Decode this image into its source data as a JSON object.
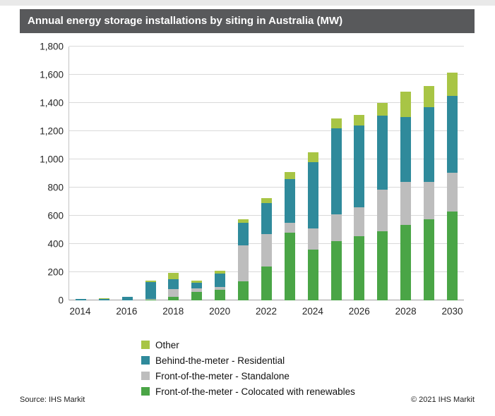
{
  "header": {
    "title": "Annual energy storage installations by siting in Australia (MW)"
  },
  "chart_data": {
    "type": "bar",
    "stacked": true,
    "title": "Annual energy storage installations by siting in Australia (MW)",
    "xlabel": "",
    "ylabel": "",
    "grid": true,
    "legend_position": "bottom",
    "ylim": [
      0,
      1800
    ],
    "ytick_step": 200,
    "ytick_labels": [
      "0",
      "200",
      "400",
      "600",
      "800",
      "1,000",
      "1,200",
      "1,400",
      "1,600",
      "1,800"
    ],
    "x": [
      2014,
      2015,
      2016,
      2017,
      2018,
      2019,
      2020,
      2021,
      2022,
      2023,
      2024,
      2025,
      2026,
      2027,
      2028,
      2029,
      2030
    ],
    "xtick_years": [
      2014,
      2016,
      2018,
      2020,
      2022,
      2024,
      2026,
      2028,
      2030
    ],
    "series": [
      {
        "name": "Front-of-the-meter - Colocated with renewables",
        "color": "#4aa546",
        "values": [
          0,
          0,
          0,
          5,
          25,
          60,
          75,
          135,
          240,
          480,
          360,
          420,
          455,
          490,
          535,
          575,
          630
        ]
      },
      {
        "name": "Front-of-the-meter - Standalone",
        "color": "#bdbdbd",
        "values": [
          0,
          0,
          0,
          5,
          55,
          25,
          20,
          255,
          230,
          70,
          150,
          190,
          205,
          295,
          305,
          265,
          275
        ]
      },
      {
        "name": "Behind-the-meter - Residential",
        "color": "#2f8a9b",
        "values": [
          8,
          12,
          25,
          120,
          70,
          40,
          95,
          160,
          220,
          310,
          470,
          610,
          580,
          525,
          460,
          530,
          545
        ]
      },
      {
        "name": "Other",
        "color": "#a8c545",
        "values": [
          2,
          3,
          0,
          10,
          45,
          15,
          20,
          25,
          35,
          50,
          70,
          70,
          75,
          90,
          180,
          150,
          165
        ]
      }
    ]
  },
  "legend": {
    "items": [
      {
        "label": "Other",
        "color": "#a8c545"
      },
      {
        "label": "Behind-the-meter - Residential",
        "color": "#2f8a9b"
      },
      {
        "label": "Front-of-the-meter - Standalone",
        "color": "#bdbdbd"
      },
      {
        "label": "Front-of-the-meter - Colocated with renewables",
        "color": "#4aa546"
      }
    ]
  },
  "footer": {
    "source": "Source: IHS Markit",
    "copyright": "© 2021 IHS Markit"
  }
}
